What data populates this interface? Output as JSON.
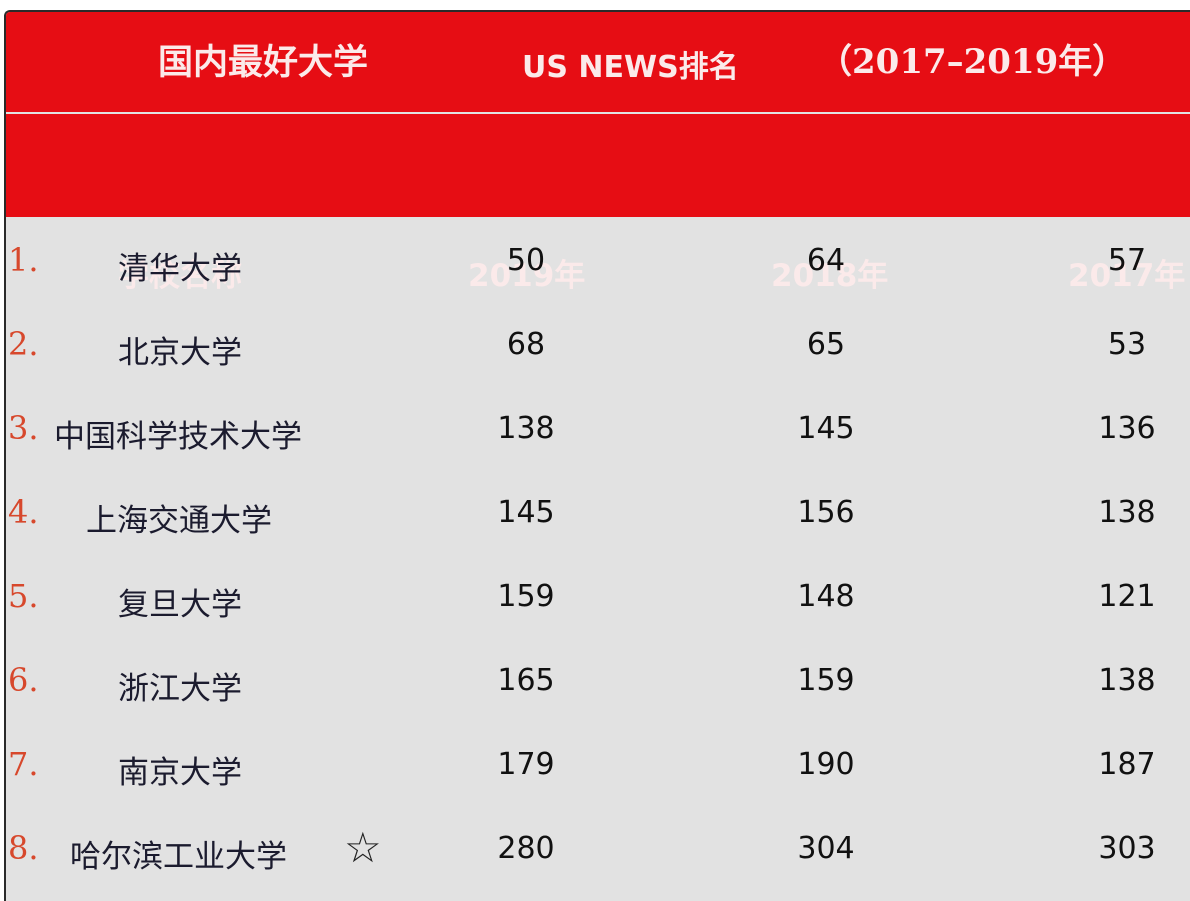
{
  "title": {
    "main": "国内最好大学",
    "usnews": "US NEWS排名",
    "years": "（2017–2019年）"
  },
  "headers": {
    "school": "学校名称",
    "y2019": "2019年",
    "y2018": "2018年",
    "y2017": "2017年"
  },
  "rows": [
    {
      "rank": "1.",
      "name": "清华大学",
      "y2019": "50",
      "y2018": "64",
      "y2017": "57"
    },
    {
      "rank": "2.",
      "name": "北京大学",
      "y2019": "68",
      "y2018": "65",
      "y2017": "53"
    },
    {
      "rank": "3.",
      "name": "中国科学技术大学",
      "y2019": "138",
      "y2018": "145",
      "y2017": "136"
    },
    {
      "rank": "4.",
      "name": "上海交通大学",
      "y2019": "145",
      "y2018": "156",
      "y2017": "138"
    },
    {
      "rank": "5.",
      "name": "复旦大学",
      "y2019": "159",
      "y2018": "148",
      "y2017": "121"
    },
    {
      "rank": "6.",
      "name": "浙江大学",
      "y2019": "165",
      "y2018": "159",
      "y2017": "138"
    },
    {
      "rank": "7.",
      "name": "南京大学",
      "y2019": "179",
      "y2018": "190",
      "y2017": "187"
    },
    {
      "rank": "8.",
      "name": "哈尔滨工业大学",
      "y2019": "280",
      "y2018": "304",
      "y2017": "303",
      "marker": "☆"
    }
  ],
  "colors": {
    "header_red": "#e60d14",
    "rank_orange": "#d7482c",
    "body_gray": "#e2e2e2"
  },
  "icons": {
    "star": "star-outline-icon"
  }
}
